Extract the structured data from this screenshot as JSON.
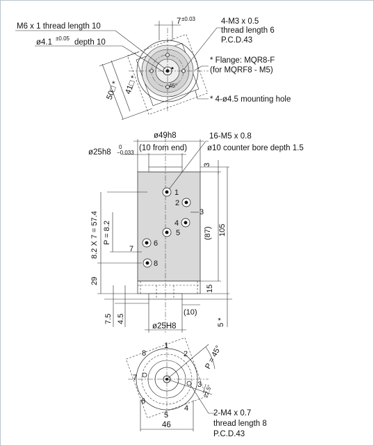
{
  "top_view": {
    "thread_m6": "M6 x 1 thread length 10",
    "bore_dia": "ø4.1",
    "bore_tol": "±0.05",
    "bore_depth": "depth 10",
    "dim_7": "7",
    "dim_7_tol": "±0.03",
    "m3_line1": "4-M3 x 0.5",
    "m3_line2": "thread length 6",
    "m3_line3": "P.C.D.43",
    "flange_line1": "* Flange: MQR8-F",
    "flange_line2": "(for MQRF8 - M5)",
    "mount_hole": "* 4-ø4.5 mounting hole",
    "sq50": "50□ *",
    "sq41": "41□ *",
    "small_45": "45°"
  },
  "side_view": {
    "dia49": "ø49h8",
    "from_end": "(10 from end)",
    "dia25": "ø25h8",
    "dia25_tol_upper": "0",
    "dia25_tol_lower": "−0.033",
    "ports_line1": "16-M5 x 0.8",
    "ports_line2": "ø10 counter bore depth 1.5",
    "dim_3": "3",
    "dim_87": "(87)",
    "dim_105": "105",
    "dim_15": "15",
    "dim_10": "(10)",
    "dim_5": "5 *",
    "dim_29": "29",
    "dim_75": "7.5",
    "dim_45": "4.5",
    "dim_pitch_total": "8.2 X 7 = 57.4",
    "dim_pitch": "P = 8.2",
    "dim_7": "7",
    "dia25H8": "ø25H8",
    "port_numbers": [
      "1",
      "2",
      "3",
      "4",
      "5",
      "6",
      "8"
    ]
  },
  "bottom_view": {
    "port_numbers": [
      "1",
      "2",
      "3",
      "4",
      "5",
      "6",
      "7",
      "8"
    ],
    "pitch_angle": "P = 45°",
    "angle_225": "22.5°",
    "m4_line1": "2-M4 x 0.7",
    "m4_line2": "thread length 8",
    "m4_line3": "P.C.D.43",
    "dim_46": "46"
  }
}
